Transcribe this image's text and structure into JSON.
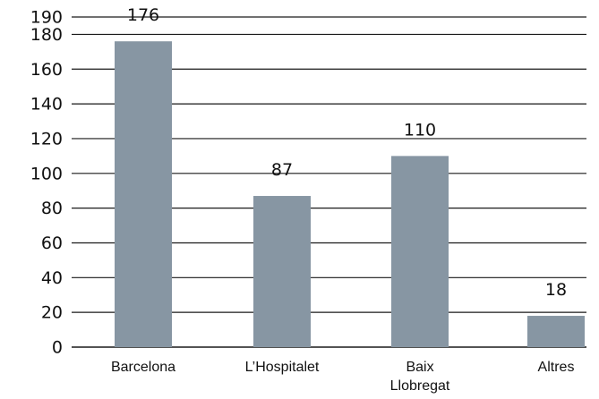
{
  "chart_data": {
    "type": "bar",
    "categories": [
      "Barcelona",
      "L’Hospitalet",
      "Baix\nLlobregat",
      "Altres"
    ],
    "values": [
      176,
      87,
      110,
      18
    ],
    "title": "",
    "xlabel": "",
    "ylabel": "",
    "ylim": [
      0,
      190
    ],
    "yticks": [
      0,
      20,
      40,
      60,
      80,
      100,
      120,
      140,
      160,
      180,
      190
    ],
    "grid": true,
    "legend": "none",
    "bar_color": "#8796a3"
  }
}
